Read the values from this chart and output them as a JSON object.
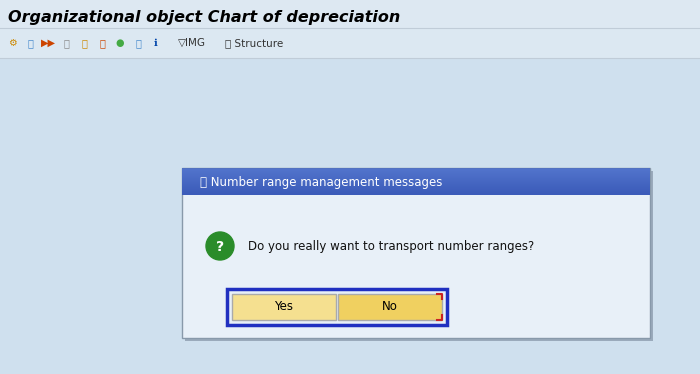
{
  "bg_color": "#cfe0ee",
  "title_text": "Organizational object Chart of depreciation",
  "title_fontsize": 11.5,
  "title_color": "#000000",
  "toolbar_bg": "#dce8f2",
  "toolbar_separator": "#b0bcc8",
  "dialog_bg": "#e8f0f8",
  "dialog_border": "#888899",
  "dialog_title_text": "⎗ Number range management messages",
  "dialog_title_color": "#ffffff",
  "dialog_title_fontsize": 8.5,
  "question_text": "Do you really want to transport number ranges?",
  "question_fontsize": 8.5,
  "yes_label": "Yes",
  "no_label": "No",
  "button_bg_yes": "#f5e090",
  "button_bg_no": "#f0d060",
  "button_border_yes_inner": "#888888",
  "button_border_no_inner": "#888888",
  "focus_border": "#2030c0",
  "no_corner_color": "#cc2222",
  "button_fontsize": 8.5,
  "green_circle": "#2a8c2a"
}
